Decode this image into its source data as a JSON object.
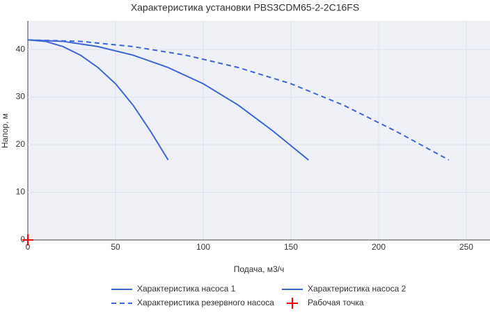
{
  "chart_data": {
    "type": "line",
    "title": "Характеристика установки PBS3CDM65-2-2C16FS",
    "x_label": "Подача, м3/ч",
    "y_label": "Напор, м",
    "xlim": [
      0,
      263.5
    ],
    "ylim": [
      0,
      46
    ],
    "xticks": [
      0,
      50,
      100,
      150,
      200,
      250
    ],
    "yticks": [
      0,
      10,
      20,
      30,
      40
    ],
    "grid": true,
    "series": [
      {
        "name": "Характеристика насоса 1",
        "color": "#3e66d4",
        "style": "solid",
        "x": [
          0,
          10,
          20,
          30,
          40,
          50,
          60,
          70,
          80
        ],
        "values": [
          42,
          41.7,
          40.6,
          38.8,
          36.2,
          32.8,
          28.3,
          22.8,
          16.8
        ]
      },
      {
        "name": "Характеристика насоса 2",
        "color": "#3e66d4",
        "style": "solid",
        "x": [
          0,
          20,
          40,
          60,
          80,
          100,
          120,
          140,
          160
        ],
        "values": [
          42,
          41.7,
          40.6,
          38.8,
          36.2,
          32.8,
          28.3,
          22.8,
          16.8
        ]
      },
      {
        "name": "Характеристика резервного насоса",
        "color": "#3e66d4",
        "style": "dash",
        "x": [
          0,
          30,
          60,
          90,
          120,
          150,
          180,
          210,
          240
        ],
        "values": [
          42,
          41.7,
          40.6,
          38.8,
          36.2,
          32.8,
          28.3,
          22.8,
          16.8
        ]
      },
      {
        "name": "Рабочая точка",
        "color": "#ff0000",
        "style": "cross",
        "x": [
          0
        ],
        "values": [
          0
        ]
      }
    ]
  }
}
